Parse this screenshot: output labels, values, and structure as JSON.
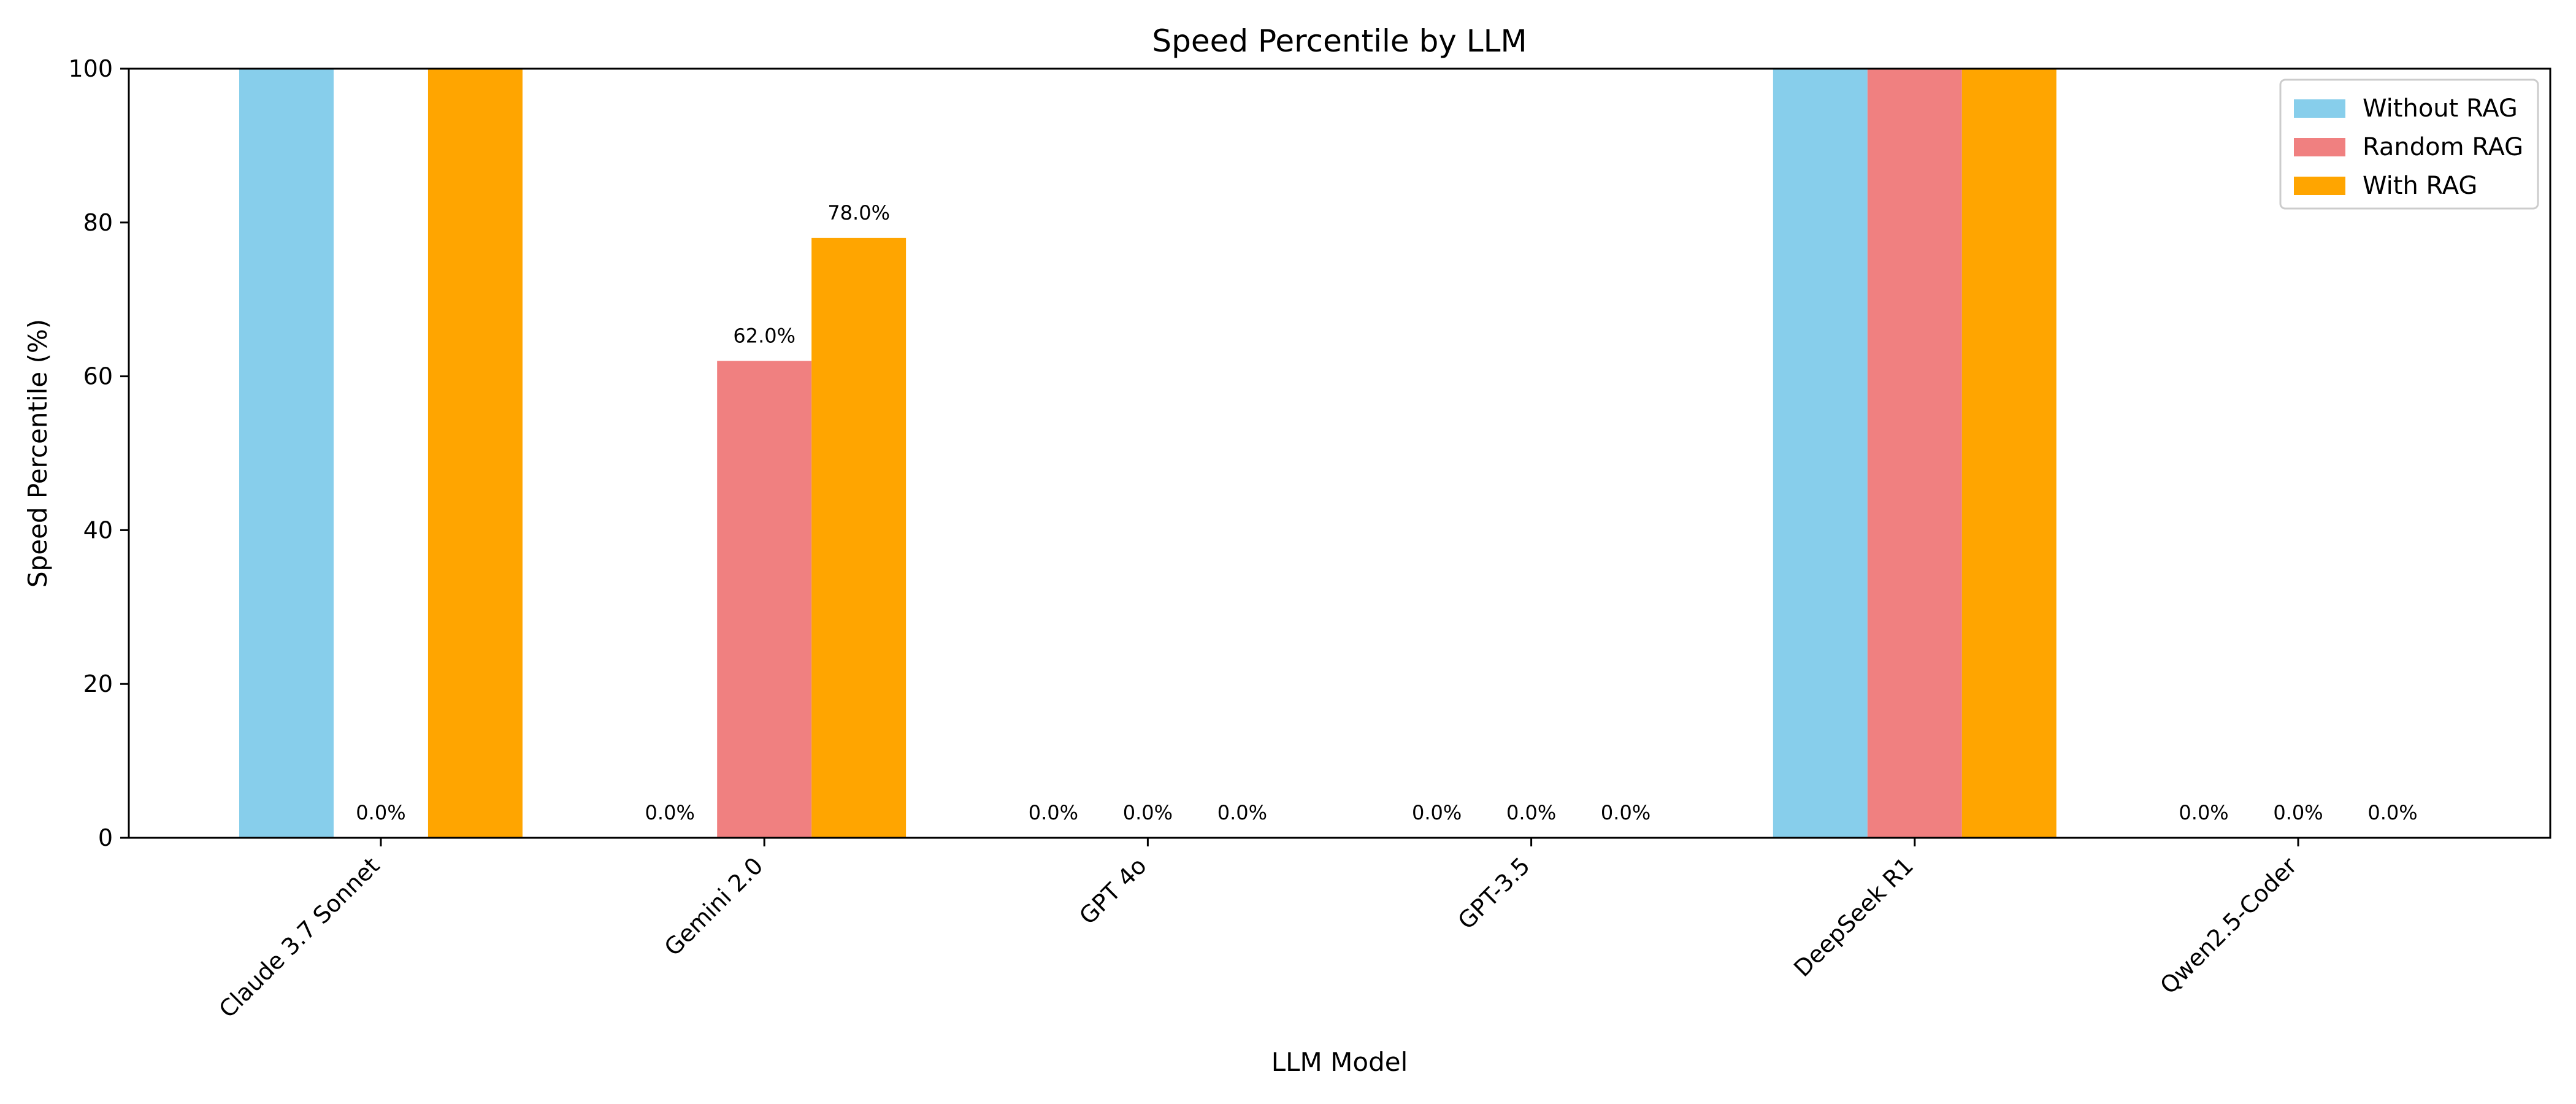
{
  "chart_data": {
    "type": "bar",
    "title": "Speed Percentile by LLM",
    "xlabel": "LLM Model",
    "ylabel": "Speed Percentile (%)",
    "ylim": [
      0,
      100
    ],
    "yticks": [
      0,
      20,
      40,
      60,
      80,
      100
    ],
    "grid": false,
    "legend_position": "top-right",
    "categories": [
      "Claude 3.7 Sonnet",
      "Gemini 2.0",
      "GPT 4o",
      "GPT-3.5",
      "DeepSeek R1",
      "Qwen2.5-Coder"
    ],
    "series": [
      {
        "name": "Without RAG",
        "color": "#87ceeb",
        "values": [
          100,
          0,
          0,
          0,
          100,
          0
        ]
      },
      {
        "name": "Random RAG",
        "color": "#f08080",
        "values": [
          0,
          62,
          0,
          0,
          100,
          0
        ]
      },
      {
        "name": "With RAG",
        "color": "#ffa500",
        "values": [
          100,
          78,
          0,
          0,
          100,
          0
        ]
      }
    ],
    "bar_labels": [
      [
        "",
        "0.0%",
        "0.0%",
        "0.0%",
        "",
        "0.0%"
      ],
      [
        "0.0%",
        "62.0%",
        "0.0%",
        "0.0%",
        "",
        "0.0%"
      ],
      [
        "",
        "78.0%",
        "0.0%",
        "0.0%",
        "",
        "0.0%"
      ]
    ]
  }
}
